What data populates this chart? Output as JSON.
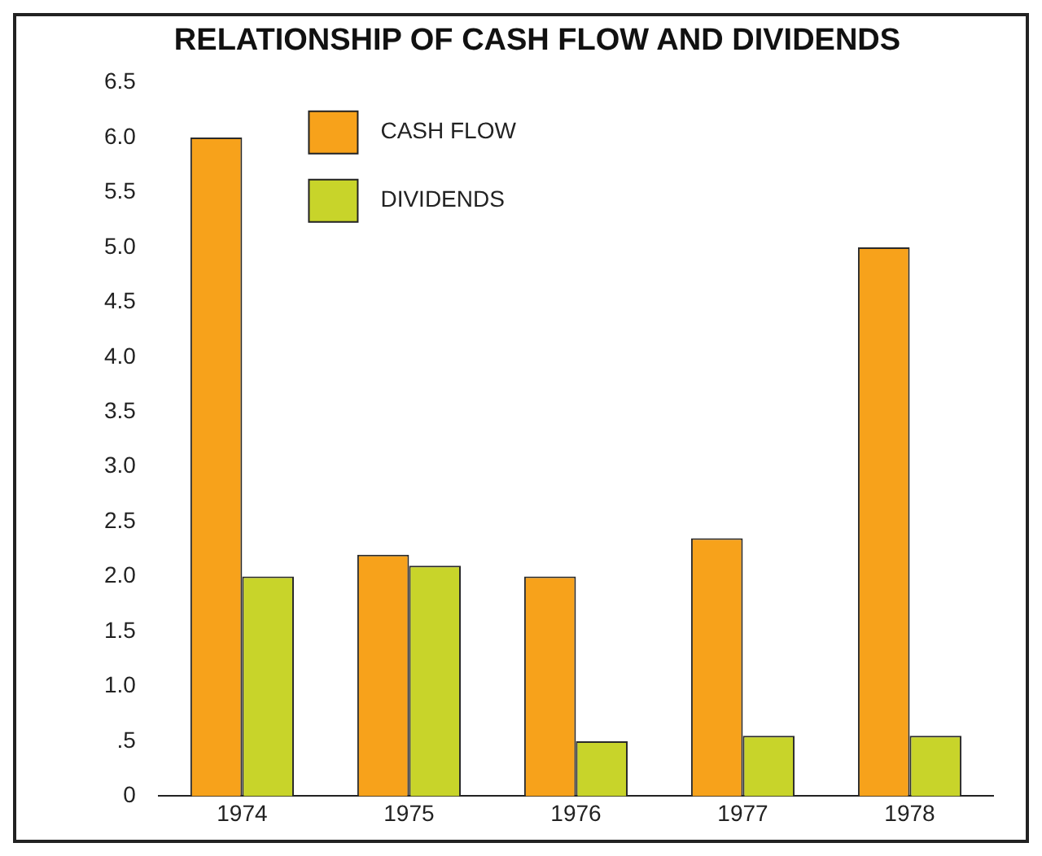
{
  "chart_data": {
    "type": "bar",
    "title": "RELATIONSHIP OF CASH FLOW AND DIVIDENDS",
    "categories": [
      "1974",
      "1975",
      "1976",
      "1977",
      "1978"
    ],
    "series": [
      {
        "name": "CASH FLOW",
        "color": "#f7a21b",
        "values": [
          6.0,
          2.2,
          2.0,
          2.35,
          5.0
        ]
      },
      {
        "name": "DIVIDENDS",
        "color": "#c8d42a",
        "values": [
          2.0,
          2.1,
          0.5,
          0.55,
          0.55
        ]
      }
    ],
    "ylim": [
      0,
      6.5
    ],
    "yticks": [
      {
        "value": 0,
        "label": "0"
      },
      {
        "value": 0.5,
        "label": ".5"
      },
      {
        "value": 1,
        "label": "1.0"
      },
      {
        "value": 1.5,
        "label": "1.5"
      },
      {
        "value": 2,
        "label": "2.0"
      },
      {
        "value": 2.5,
        "label": "2.5"
      },
      {
        "value": 3,
        "label": "3.0"
      },
      {
        "value": 3.5,
        "label": "3.5"
      },
      {
        "value": 4,
        "label": "4.0"
      },
      {
        "value": 4.5,
        "label": "4.5"
      },
      {
        "value": 5,
        "label": "5.0"
      },
      {
        "value": 5.5,
        "label": "5.5"
      },
      {
        "value": 6,
        "label": "6.0"
      },
      {
        "value": 6.5,
        "label": "6.5"
      }
    ],
    "grid": false,
    "legend": "top left"
  }
}
